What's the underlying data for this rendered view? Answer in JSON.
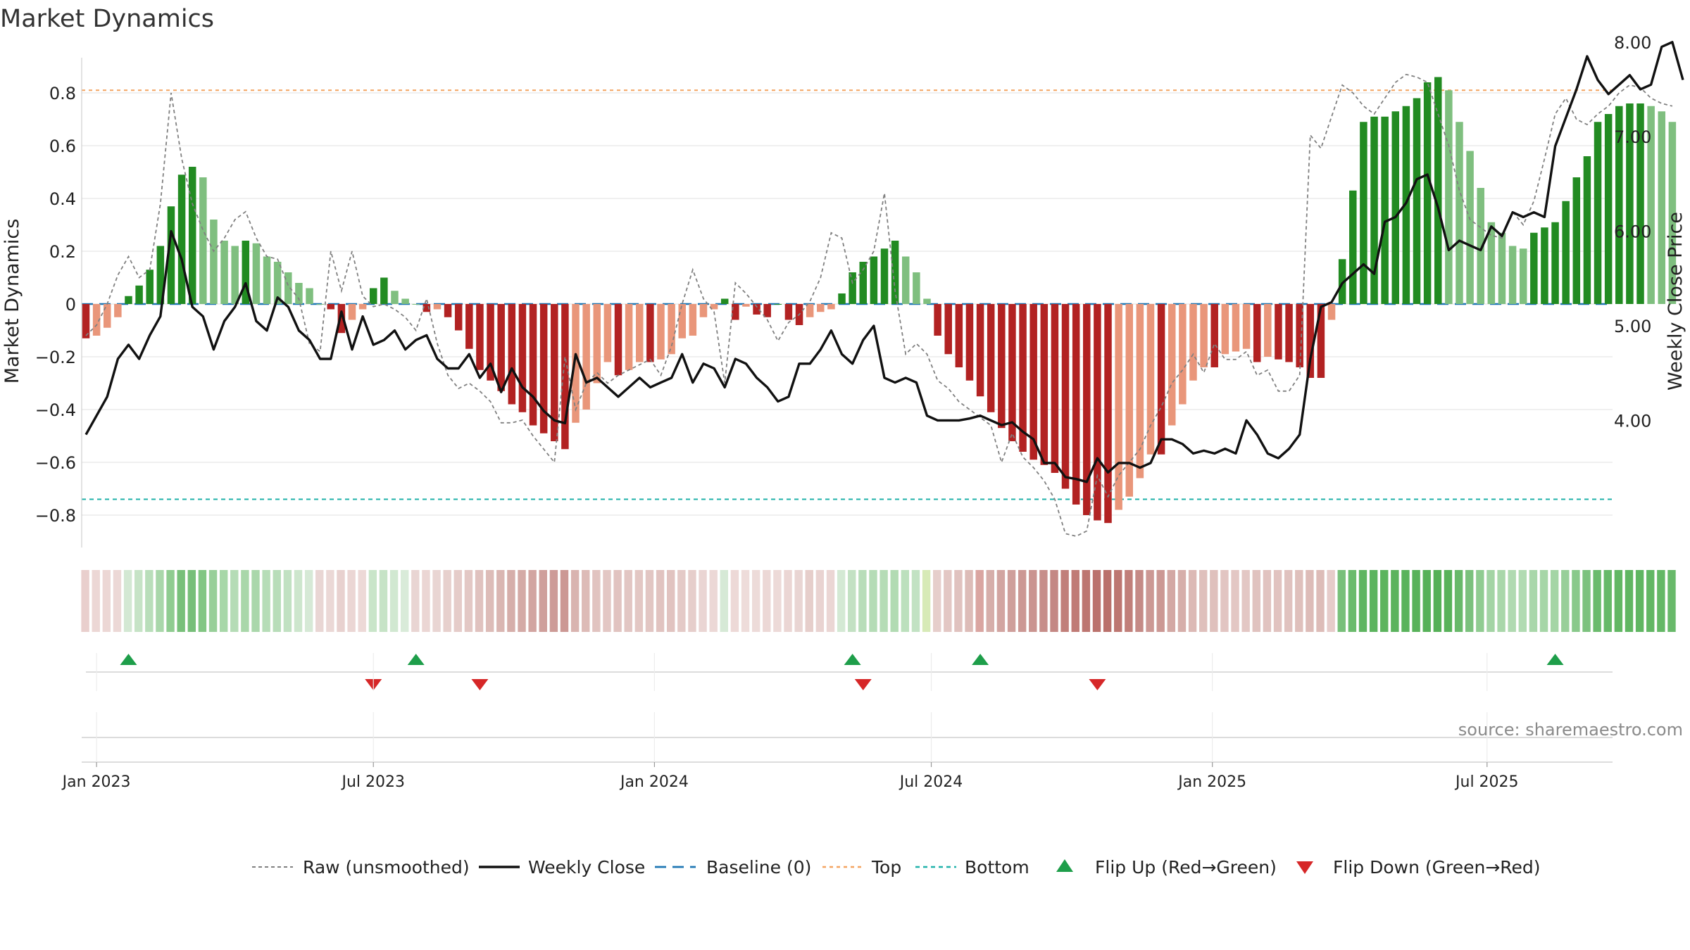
{
  "chart_data": {
    "type": "bar",
    "title": "Market Dynamics",
    "ylabel": "Market Dynamics",
    "y2label": "Weekly Close Price",
    "ylim": [
      -0.92,
      0.93
    ],
    "y2lim": [
      3.05,
      8.25
    ],
    "yticks": [
      {
        "value": 0.8,
        "label": "0.8"
      },
      {
        "value": 0.6,
        "label": "0.6"
      },
      {
        "value": 0.4,
        "label": "0.4"
      },
      {
        "value": 0.2,
        "label": "0.2"
      },
      {
        "value": 0.0,
        "label": "0"
      },
      {
        "value": -0.2,
        "label": "−0.2"
      },
      {
        "value": -0.4,
        "label": "−0.4"
      },
      {
        "value": -0.6,
        "label": "−0.6"
      },
      {
        "value": -0.8,
        "label": "−0.8"
      }
    ],
    "y2ticks": [
      {
        "value": 8.0,
        "label": "8.00"
      },
      {
        "value": 7.0,
        "label": "7.00"
      },
      {
        "value": 6.0,
        "label": "6.00"
      },
      {
        "value": 5.0,
        "label": "5.00"
      },
      {
        "value": 4.0,
        "label": "4.00"
      }
    ],
    "xticks": [
      {
        "week": 0,
        "label": "Jan 2023"
      },
      {
        "week": 26,
        "label": "Jul 2023"
      },
      {
        "week": 52.4,
        "label": "Jan 2024"
      },
      {
        "week": 78.4,
        "label": "Jul 2024"
      },
      {
        "week": 104.8,
        "label": "Jan 2025"
      },
      {
        "week": 130.6,
        "label": "Jul 2025"
      }
    ],
    "first_week": -1,
    "top_level": 0.81,
    "bottom_level": -0.74,
    "smoothed": [
      -0.13,
      -0.12,
      -0.09,
      -0.05,
      0.03,
      0.07,
      0.13,
      0.22,
      0.37,
      0.49,
      0.52,
      0.48,
      0.32,
      0.24,
      0.22,
      0.24,
      0.23,
      0.18,
      0.16,
      0.12,
      0.08,
      0.06,
      0.0,
      -0.02,
      -0.11,
      -0.06,
      -0.02,
      0.06,
      0.1,
      0.05,
      0.02,
      0.0,
      -0.03,
      -0.02,
      -0.05,
      -0.1,
      -0.17,
      -0.25,
      -0.29,
      -0.33,
      -0.38,
      -0.41,
      -0.46,
      -0.49,
      -0.52,
      -0.55,
      -0.45,
      -0.4,
      -0.3,
      -0.22,
      -0.27,
      -0.25,
      -0.22,
      -0.22,
      -0.21,
      -0.19,
      -0.13,
      -0.12,
      -0.05,
      -0.02,
      0.02,
      -0.06,
      -0.01,
      -0.04,
      -0.05,
      0.0,
      -0.06,
      -0.08,
      -0.05,
      -0.03,
      -0.02,
      0.04,
      0.12,
      0.16,
      0.18,
      0.21,
      0.24,
      0.18,
      0.12,
      0.02,
      -0.12,
      -0.19,
      -0.24,
      -0.29,
      -0.35,
      -0.41,
      -0.47,
      -0.52,
      -0.56,
      -0.59,
      -0.61,
      -0.64,
      -0.7,
      -0.76,
      -0.8,
      -0.82,
      -0.83,
      -0.78,
      -0.73,
      -0.66,
      -0.57,
      -0.57,
      -0.46,
      -0.38,
      -0.29,
      -0.24,
      -0.24,
      -0.19,
      -0.18,
      -0.17,
      -0.22,
      -0.2,
      -0.21,
      -0.22,
      -0.24,
      -0.28,
      -0.28,
      -0.06,
      0.17,
      0.43,
      0.69,
      0.71,
      0.71,
      0.73,
      0.75,
      0.78,
      0.84,
      0.86,
      0.81,
      0.69,
      0.58,
      0.44,
      0.31,
      0.27,
      0.22,
      0.21,
      0.27,
      0.29,
      0.31,
      0.39,
      0.48,
      0.56,
      0.69,
      0.72,
      0.75,
      0.76,
      0.76,
      0.75,
      0.73,
      0.69
    ],
    "raw": [
      -0.12,
      -0.08,
      0.0,
      0.11,
      0.18,
      0.1,
      0.13,
      0.38,
      0.8,
      0.55,
      0.38,
      0.28,
      0.2,
      0.25,
      0.32,
      0.35,
      0.25,
      0.18,
      0.17,
      0.07,
      0.02,
      -0.15,
      -0.18,
      0.2,
      0.05,
      0.2,
      0.03,
      -0.01,
      0.0,
      -0.02,
      -0.05,
      -0.1,
      0.02,
      -0.15,
      -0.27,
      -0.32,
      -0.3,
      -0.33,
      -0.37,
      -0.45,
      -0.45,
      -0.44,
      -0.5,
      -0.55,
      -0.6,
      -0.2,
      -0.4,
      -0.3,
      -0.26,
      -0.3,
      -0.27,
      -0.25,
      -0.23,
      -0.21,
      -0.27,
      -0.16,
      0.0,
      0.13,
      0.02,
      -0.03,
      -0.3,
      0.08,
      0.04,
      -0.01,
      -0.06,
      -0.14,
      -0.07,
      -0.04,
      0.01,
      0.1,
      0.27,
      0.25,
      0.08,
      0.13,
      0.2,
      0.42,
      0.05,
      -0.19,
      -0.15,
      -0.19,
      -0.29,
      -0.32,
      -0.37,
      -0.4,
      -0.43,
      -0.46,
      -0.6,
      -0.49,
      -0.58,
      -0.62,
      -0.67,
      -0.74,
      -0.87,
      -0.88,
      -0.86,
      -0.65,
      -0.73,
      -0.65,
      -0.6,
      -0.55,
      -0.46,
      -0.39,
      -0.3,
      -0.25,
      -0.19,
      -0.26,
      -0.15,
      -0.21,
      -0.21,
      -0.18,
      -0.27,
      -0.25,
      -0.33,
      -0.33,
      -0.27,
      0.64,
      0.59,
      0.71,
      0.83,
      0.8,
      0.75,
      0.72,
      0.78,
      0.84,
      0.87,
      0.86,
      0.84,
      0.72,
      0.6,
      0.43,
      0.32,
      0.29,
      0.26,
      0.25,
      0.35,
      0.3,
      0.39,
      0.55,
      0.72,
      0.78,
      0.7,
      0.68,
      0.72,
      0.75,
      0.8,
      0.83,
      0.82,
      0.78,
      0.76,
      0.75
    ],
    "weekly_close": [
      3.85,
      4.05,
      4.25,
      4.65,
      4.8,
      4.65,
      4.9,
      5.1,
      6.0,
      5.7,
      5.2,
      5.1,
      4.75,
      5.05,
      5.2,
      5.45,
      5.05,
      4.95,
      5.3,
      5.2,
      4.95,
      4.85,
      4.65,
      4.65,
      5.15,
      4.75,
      5.1,
      4.8,
      4.85,
      4.95,
      4.75,
      4.85,
      4.9,
      4.65,
      4.55,
      4.55,
      4.7,
      4.45,
      4.6,
      4.3,
      4.55,
      4.35,
      4.25,
      4.1,
      4.0,
      3.97,
      4.7,
      4.4,
      4.45,
      4.35,
      4.25,
      4.35,
      4.45,
      4.35,
      4.4,
      4.45,
      4.7,
      4.4,
      4.6,
      4.55,
      4.35,
      4.65,
      4.6,
      4.45,
      4.35,
      4.2,
      4.25,
      4.6,
      4.6,
      4.75,
      4.95,
      4.7,
      4.6,
      4.85,
      5.0,
      4.45,
      4.4,
      4.45,
      4.4,
      4.05,
      4.0,
      4.0,
      4.0,
      4.02,
      4.05,
      4.0,
      3.95,
      3.98,
      3.88,
      3.8,
      3.55,
      3.55,
      3.4,
      3.38,
      3.35,
      3.6,
      3.45,
      3.55,
      3.55,
      3.5,
      3.55,
      3.8,
      3.8,
      3.75,
      3.65,
      3.68,
      3.65,
      3.7,
      3.65,
      4.0,
      3.85,
      3.65,
      3.6,
      3.7,
      3.85,
      4.65,
      5.2,
      5.25,
      5.45,
      5.55,
      5.65,
      5.55,
      6.1,
      6.15,
      6.3,
      6.55,
      6.6,
      6.25,
      5.8,
      5.9,
      5.85,
      5.8,
      6.05,
      5.95,
      6.2,
      6.15,
      6.2,
      6.15,
      6.9,
      7.2,
      7.5,
      7.85,
      7.6,
      7.45,
      7.55,
      7.65,
      7.5,
      7.55,
      7.95,
      8.0,
      7.6
    ],
    "flip_up_weeks": [
      3,
      30,
      71,
      83,
      137
    ],
    "flip_down_weeks": [
      26,
      36,
      72,
      94
    ],
    "heat_colors": [
      "#e9cfcd",
      "#ecd7d5",
      "#ecd7d5",
      "#ecd8d6",
      "#d3e8d3",
      "#c6e3c6",
      "#b9deba",
      "#a9d7aa",
      "#8fcc90",
      "#78c07a",
      "#77bf79",
      "#82c683",
      "#98cf99",
      "#a7d7a8",
      "#b5dcb6",
      "#a9d7aa",
      "#aad7ab",
      "#b6ddb7",
      "#b8ddb9",
      "#c1e1c2",
      "#cde6cd",
      "#d6e9d6",
      "#e9d6d4",
      "#ebd8d6",
      "#e8d1cf",
      "#ebd6d4",
      "#edd9d7",
      "#c9e5c9",
      "#c6e3c6",
      "#d1e8d1",
      "#d9ebd9",
      "#e9d5d3",
      "#ebd6d4",
      "#e9d5d3",
      "#e7d0cd",
      "#e5ccc9",
      "#e3c8c5",
      "#e0c2bf",
      "#ddbcb8",
      "#dab6b2",
      "#d6aeaa",
      "#d4aaa6",
      "#d2a5a1",
      "#cf9f9b",
      "#cd9b97",
      "#cc9894",
      "#d9b4b0",
      "#ddbbb7",
      "#e1c3c0",
      "#e3c7c4",
      "#e1c3c0",
      "#e2c6c3",
      "#e3c7c4",
      "#e2c6c3",
      "#e1c3c0",
      "#e1c3c0",
      "#e4cac7",
      "#e6cecb",
      "#ead5d3",
      "#ecd8d6",
      "#d6e9d6",
      "#edd9d7",
      "#eedcda",
      "#eddbd9",
      "#ecd8d6",
      "#eddad8",
      "#ebd6d4",
      "#e9d5d3",
      "#e6cecb",
      "#e9d3d1",
      "#ebd6d4",
      "#d4e9d4",
      "#c3e1c3",
      "#b8ddb9",
      "#b5dcb6",
      "#b5dcb6",
      "#b2dbb3",
      "#bce0bd",
      "#c2e2c3",
      "#d7eab7",
      "#e6cecb",
      "#e3c7c4",
      "#e0c2bf",
      "#ddbcb8",
      "#daa5a1",
      "#d6aeaa",
      "#d2a5a1",
      "#cf9f9b",
      "#cc9894",
      "#ca9490",
      "#c78e8a",
      "#c48884",
      "#c17f7a",
      "#c07b76",
      "#bd7671",
      "#bb726d",
      "#ba706b",
      "#bd7671",
      "#c17f7a",
      "#c58a86",
      "#cc9894",
      "#cc9894",
      "#d3a8a4",
      "#d6aeaa",
      "#dcb9b5",
      "#dfc0bc",
      "#dfc0bc",
      "#e2c5c2",
      "#e3c7c4",
      "#e3c7c4",
      "#e0c2bf",
      "#e1c3c0",
      "#e1c3c0",
      "#e0c2bf",
      "#dfc0bc",
      "#ddbcb8",
      "#ddbcb8",
      "#e6ccca",
      "#78c07a",
      "#6bbb6d",
      "#5fb561",
      "#5cb45e",
      "#5cb45e",
      "#5bb35d",
      "#5ab35c",
      "#58b25a",
      "#56b158",
      "#55b057",
      "#58b25a",
      "#68b96a",
      "#7bc17d",
      "#90cc91",
      "#a3d4a4",
      "#a9d7aa",
      "#b0dab1",
      "#b1dbb2",
      "#a9d7aa",
      "#a6d6a7",
      "#a4d5a5",
      "#98cf99",
      "#89c98b",
      "#7cc27e",
      "#6bbb6d",
      "#66b968",
      "#62b764",
      "#60b662",
      "#60b662",
      "#62b764",
      "#64b866",
      "#68b96a"
    ],
    "legend": [
      {
        "key": "raw",
        "label": "Raw (unsmoothed)"
      },
      {
        "key": "close",
        "label": "Weekly Close"
      },
      {
        "key": "baseline",
        "label": "Baseline (0)"
      },
      {
        "key": "top",
        "label": "Top"
      },
      {
        "key": "bottom",
        "label": "Bottom"
      },
      {
        "key": "flipup",
        "label": "Flip Up (Red→Green)"
      },
      {
        "key": "flipdown",
        "label": "Flip Down (Green→Red)"
      }
    ],
    "source": "source: sharemaestro.com",
    "colors": {
      "strong_green": "#228b22",
      "light_green": "#7fbf7f",
      "strong_red": "#b22222",
      "light_red": "#e9967a",
      "raw_line": "#808080",
      "close_line": "#111111",
      "baseline": "#1f77b4",
      "top": "#f4a460",
      "bottom": "#20b2aa",
      "flip_up": "#1e9e4a",
      "flip_down": "#d62728",
      "grid": "#e6e6e6"
    }
  }
}
